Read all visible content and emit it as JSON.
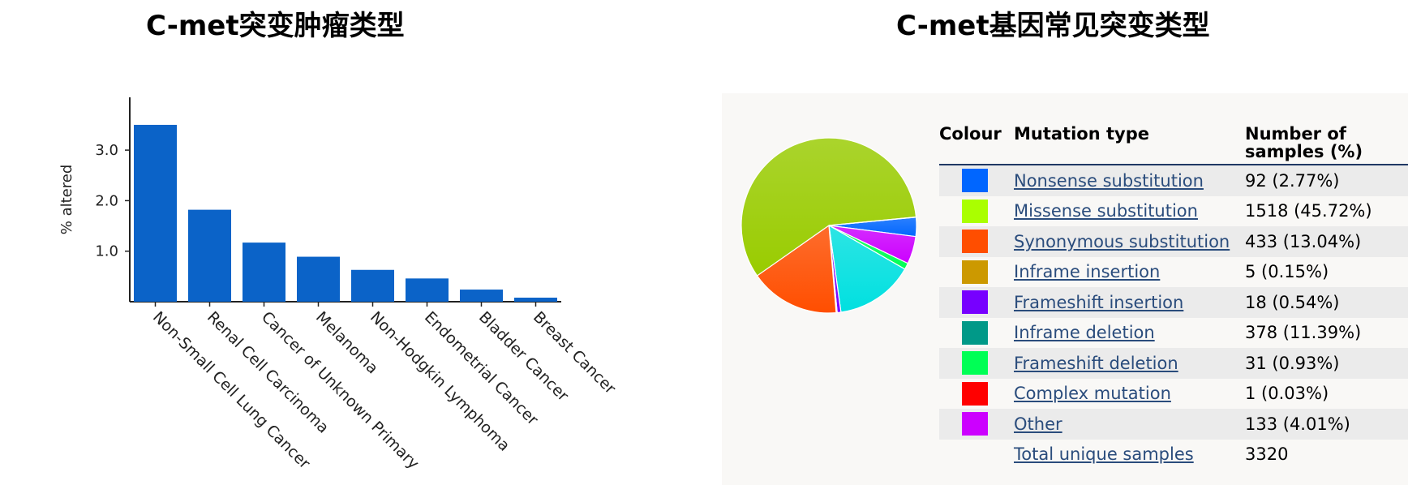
{
  "titles": {
    "left": "C-met突变肿瘤类型",
    "right": "C-met基因常见突变类型"
  },
  "chart_data": [
    {
      "type": "bar",
      "ylabel": "% altered",
      "ylim": [
        0,
        4.0
      ],
      "yticks": [
        "1.0",
        "2.0",
        "3.0"
      ],
      "categories": [
        "Non-Small Cell Lung Cancer",
        "Renal Cell Carcinoma",
        "Cancer of Unknown Primary",
        "Melanoma",
        "Non-Hodgkin Lymphoma",
        "Endometrial Cancer",
        "Bladder Cancer",
        "Breast Cancer"
      ],
      "values": [
        3.5,
        1.82,
        1.17,
        0.89,
        0.63,
        0.46,
        0.24,
        0.08
      ],
      "color": "#0b63c8"
    },
    {
      "type": "pie",
      "slices": [
        {
          "label": "Nonsense substitution",
          "value": 92,
          "color": "#0066ff"
        },
        {
          "label": "Other",
          "value": 133,
          "color": "#cc00ff"
        },
        {
          "label": "Frameshift deletion",
          "value": 31,
          "color": "#00ff55"
        },
        {
          "label": "Inframe deletion",
          "value": 378,
          "color": "#00e0e0"
        },
        {
          "label": "Frameshift insertion",
          "value": 18,
          "color": "#7700ff"
        },
        {
          "label": "Inframe insertion",
          "value": 5,
          "color": "#cc9900"
        },
        {
          "label": "Synonymous substitution",
          "value": 433,
          "color": "#ff4e00"
        },
        {
          "label": "Missense substitution",
          "value": 1518,
          "color": "#99cc00"
        },
        {
          "label": "Complex mutation",
          "value": 1,
          "color": "#ff0000"
        }
      ]
    }
  ],
  "legend": {
    "headers": {
      "colour": "Colour",
      "type": "Mutation type",
      "number_line1": "Number of",
      "number_line2": "samples (%)"
    },
    "rows": [
      {
        "color": "#0066ff",
        "type": "Nonsense substitution",
        "count": "92 (2.77%)"
      },
      {
        "color": "#aaff00",
        "type": "Missense substitution",
        "count": "1518 (45.72%)"
      },
      {
        "color": "#ff4e00",
        "type": "Synonymous substitution",
        "count": "433 (13.04%)"
      },
      {
        "color": "#cc9900",
        "type": "Inframe insertion",
        "count": "5 (0.15%)"
      },
      {
        "color": "#7700ff",
        "type": "Frameshift insertion",
        "count": "18 (0.54%)"
      },
      {
        "color": "#009988",
        "type": "Inframe deletion",
        "count": "378 (11.39%)"
      },
      {
        "color": "#00ff55",
        "type": "Frameshift deletion",
        "count": "31 (0.93%)"
      },
      {
        "color": "#ff0000",
        "type": "Complex mutation",
        "count": "1 (0.03%)"
      },
      {
        "color": "#cc00ff",
        "type": "Other",
        "count": "133 (4.01%)"
      }
    ],
    "total": {
      "label": "Total unique samples",
      "value": "3320"
    }
  }
}
